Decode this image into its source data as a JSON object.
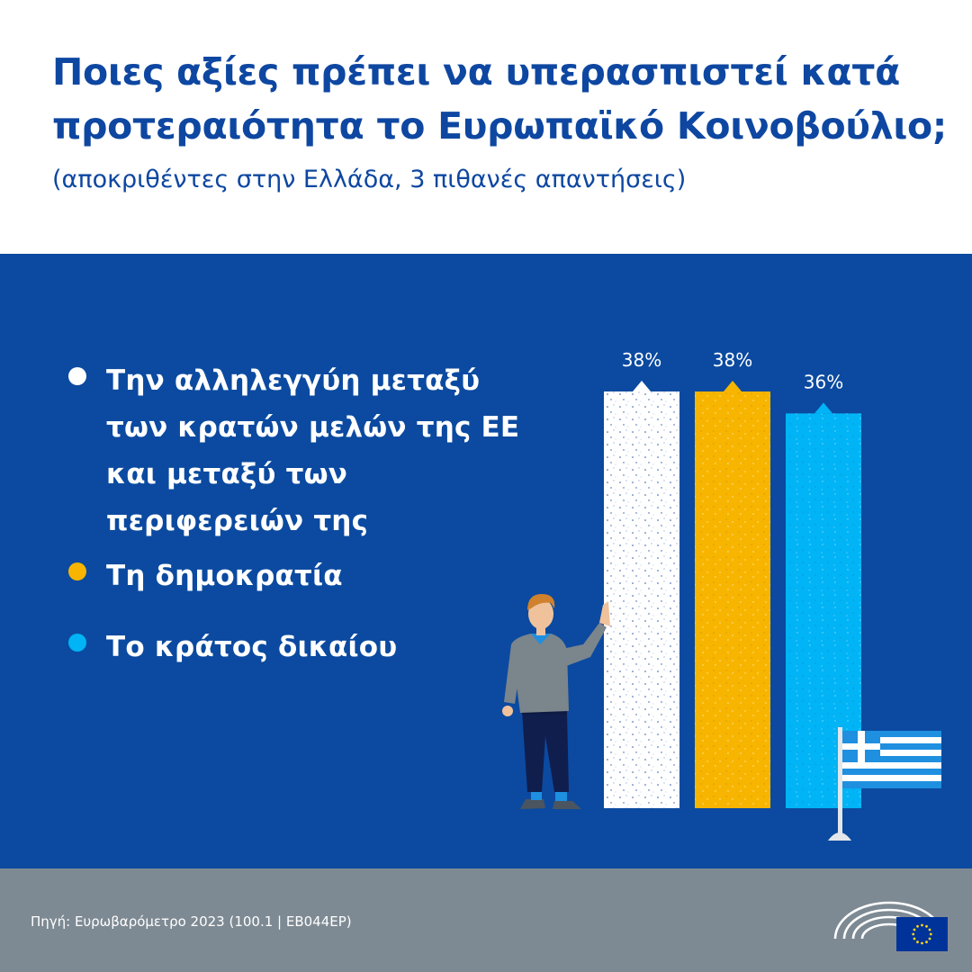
{
  "header": {
    "title_line1": "Ποιες αξίες πρέπει να υπερασπιστεί κατά",
    "title_line2": "προτεραιότητα το Ευρωπαϊκό Κοινοβούλιο;",
    "subtitle": "(αποκριθέντες στην Ελλάδα, 3 πιθανές απαντήσεις)"
  },
  "legend": [
    {
      "lines": [
        "Την αλληλεγγύη μεταξύ",
        "των κρατών μελών της ΕΕ",
        "και μεταξύ των",
        "περιφερειών της"
      ],
      "color": "#ffffff"
    },
    {
      "lines": [
        "Τη δημοκρατία"
      ],
      "color": "#f7b500"
    },
    {
      "lines": [
        "Το κράτος δικαίου"
      ],
      "color": "#00b4f5"
    }
  ],
  "chart_data": {
    "type": "bar",
    "categories": [
      "Την αλληλεγγύη μεταξύ των κρατών μελών της ΕΕ και μεταξύ των περιφερειών της",
      "Τη δημοκρατία",
      "Το κράτος δικαίου"
    ],
    "values": [
      38,
      38,
      36
    ],
    "data_labels": [
      "38%",
      "38%",
      "36%"
    ],
    "colors": [
      "#ffffff",
      "#f7b500",
      "#00b4f5"
    ],
    "ylim": [
      0,
      38
    ],
    "grid": false,
    "legend_position": "left"
  },
  "colors": {
    "title": "#0e47a1",
    "background_main": "#0b4aa0",
    "footer": "#7e8a93"
  },
  "icons": [
    "person-illustration",
    "greek-flag-icon",
    "european-parliament-logo",
    "eu-flag-icon"
  ],
  "footer": {
    "source": "Πηγή: Ευρωβαρόμετρο 2023 (100.1 | EB044EP)"
  }
}
